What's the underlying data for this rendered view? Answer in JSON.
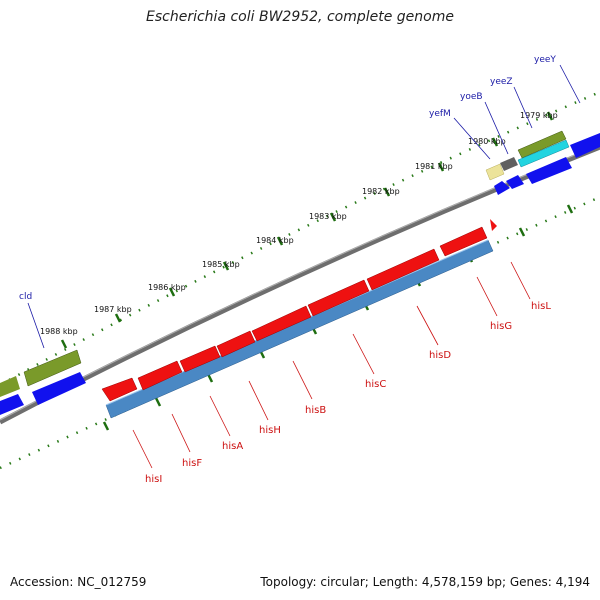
{
  "title": "Escherichia coli BW2952, complete genome",
  "footer": {
    "accession": "Accession: NC_012759",
    "summary": "Topology: circular; Length: 4,578,159 bp; Genes: 4,194"
  },
  "kbp_labels": [
    "1979 kbp",
    "1980 kbp",
    "1981 kbp",
    "1982 kbp",
    "1983 kbp",
    "1984 kbp",
    "1985 kbp",
    "1986 kbp",
    "1987 kbp",
    "1988 kbp"
  ],
  "top_gene_labels": [
    "yeeY",
    "yeeZ",
    "yoeB",
    "yefM",
    "cld"
  ],
  "bottom_gene_labels": [
    "hisL",
    "hisG",
    "hisD",
    "hisC",
    "hisB",
    "hisH",
    "hisA",
    "hisF",
    "hisI"
  ],
  "colors": {
    "backbone": "#808080",
    "gene_red": "#ee1111",
    "gene_blue": "#1111ee",
    "cds_steel": "#4a88c4",
    "gene_olive": "#7a9a2a",
    "gene_cyan": "#22d4e0",
    "gene_gray": "#666666",
    "gene_khaki": "#ece39a",
    "tick_green": "#2a7a1a"
  }
}
